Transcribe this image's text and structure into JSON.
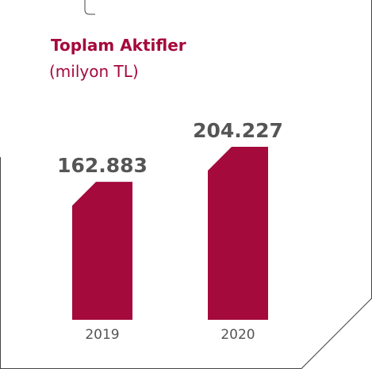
{
  "chart_data": {
    "type": "bar",
    "title": "Toplam Aktifler",
    "subtitle": "(milyon TL)",
    "categories": [
      "2019",
      "2020"
    ],
    "values": [
      162883,
      204227
    ],
    "value_labels": [
      "162.883",
      "204.227"
    ],
    "ylim": [
      0,
      204227
    ],
    "grid": false,
    "bar_color": "#a50a3c",
    "label_color": "#555555",
    "frame_color": "#444444"
  }
}
